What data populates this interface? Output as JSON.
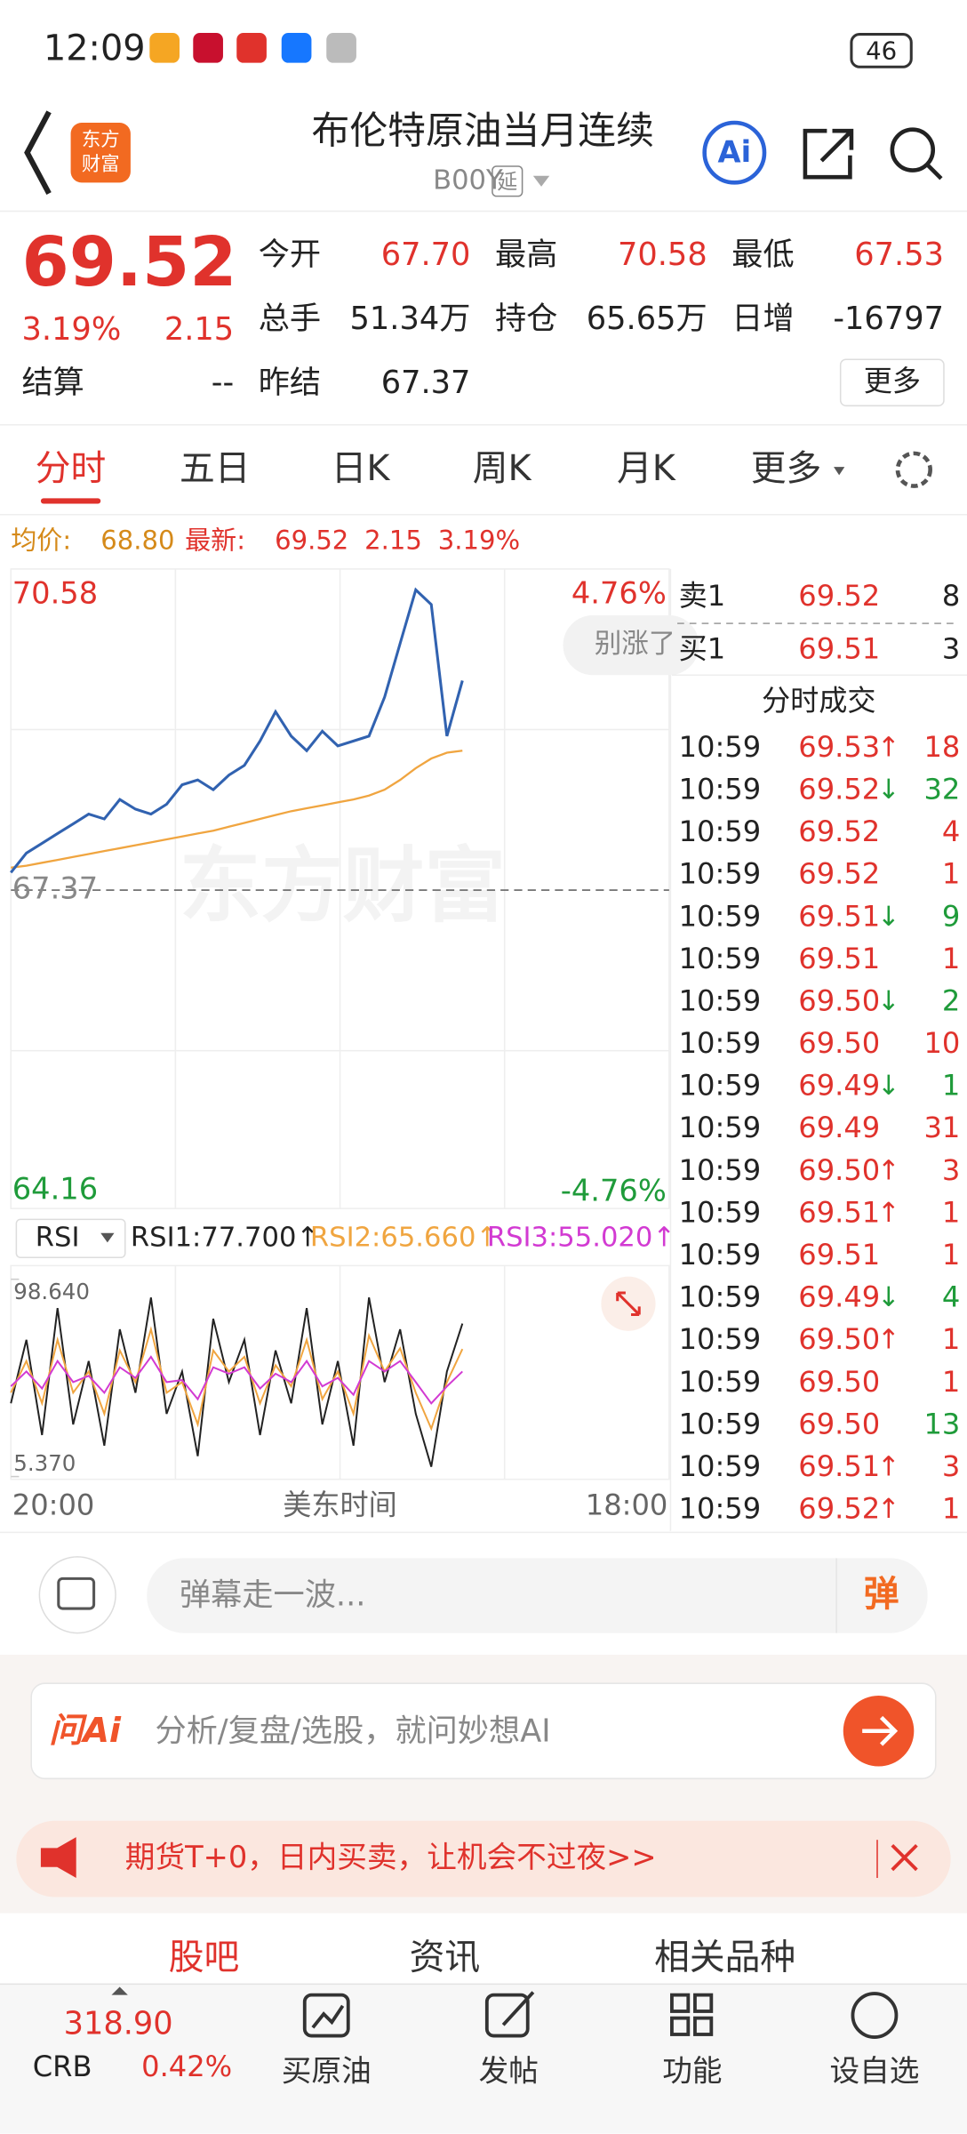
{
  "status_bar": {
    "time": "12:09",
    "battery": "46"
  },
  "header": {
    "logo": [
      "东方",
      "财富"
    ],
    "title": "布伦特原油当月连续",
    "code": "B00Y",
    "tag": "延",
    "ai": "Ai"
  },
  "quote": {
    "price": "69.52",
    "change_pct": "3.19%",
    "change": "2.15",
    "settle_label": "结算",
    "settle": "--",
    "fields": [
      {
        "label": "今开",
        "value": "67.70"
      },
      {
        "label": "最高",
        "value": "70.58"
      },
      {
        "label": "最低",
        "value": "67.53"
      },
      {
        "label": "总手",
        "value": "51.34万"
      },
      {
        "label": "持仓",
        "value": "65.65万"
      },
      {
        "label": "日增",
        "value": "-16797"
      },
      {
        "label": "昨结",
        "value": "67.37"
      }
    ],
    "more": "更多"
  },
  "tabs": {
    "items": [
      "分时",
      "五日",
      "日K",
      "周K",
      "月K",
      "更多"
    ],
    "active": 0
  },
  "summary": {
    "avg_label": "均价:",
    "avg": "68.80",
    "last_label": "最新:",
    "last": "69.52",
    "change": "2.15",
    "change_pct": "3.19%"
  },
  "chart_data": {
    "type": "line",
    "ylim": [
      64.16,
      70.58
    ],
    "yticks": [
      70.58,
      67.37,
      64.16
    ],
    "pct_ticks": [
      "4.76%",
      "-4.76%"
    ],
    "watermark": "东方财富",
    "badge": "别涨了",
    "x_labels": [
      "20:00",
      "美东时间",
      "18:00"
    ],
    "series": [
      {
        "color": "#3162b0",
        "values": [
          67.55,
          67.75,
          67.85,
          67.95,
          68.05,
          68.15,
          68.1,
          68.3,
          68.2,
          68.15,
          68.25,
          68.45,
          68.5,
          68.4,
          68.55,
          68.65,
          68.9,
          69.2,
          68.95,
          68.8,
          69.0,
          68.85,
          68.9,
          68.95,
          69.35,
          69.9,
          70.45,
          70.3,
          68.95,
          69.52
        ]
      },
      {
        "color": "#f0a540",
        "values": [
          67.6,
          67.62,
          67.65,
          67.68,
          67.71,
          67.74,
          67.77,
          67.8,
          67.83,
          67.86,
          67.89,
          67.92,
          67.95,
          67.98,
          68.02,
          68.06,
          68.1,
          68.14,
          68.18,
          68.21,
          68.24,
          68.27,
          68.3,
          68.34,
          68.4,
          68.5,
          68.62,
          68.72,
          68.78,
          68.8
        ]
      }
    ],
    "rsi": {
      "label": "RSI",
      "ylim": [
        5.37,
        98.64
      ],
      "yticks": [
        {
          "value": 98.64,
          "label": "98.640"
        },
        {
          "value": 5.37,
          "label": "5.370"
        }
      ],
      "readouts": [
        "RSI1:77.700↑",
        "RSI2:65.660↑",
        "RSI3:55.020↑"
      ],
      "series": [
        {
          "color": "#222222",
          "values": [
            40,
            70,
            25,
            85,
            30,
            60,
            20,
            75,
            45,
            90,
            35,
            55,
            15,
            80,
            50,
            70,
            25,
            65,
            40,
            85,
            30,
            60,
            20,
            90,
            50,
            75,
            35,
            10,
            55,
            77.7
          ]
        },
        {
          "color": "#f0a540",
          "values": [
            45,
            60,
            40,
            70,
            45,
            55,
            35,
            65,
            50,
            75,
            45,
            50,
            30,
            65,
            55,
            62,
            40,
            58,
            48,
            70,
            42,
            55,
            35,
            72,
            55,
            66,
            45,
            28,
            50,
            65.66
          ]
        },
        {
          "color": "#d23ad2",
          "values": [
            48,
            55,
            47,
            60,
            50,
            53,
            45,
            57,
            52,
            62,
            50,
            51,
            42,
            57,
            54,
            57,
            47,
            54,
            50,
            60,
            48,
            52,
            44,
            60,
            55,
            60,
            50,
            40,
            48,
            55.02
          ]
        }
      ]
    }
  },
  "order_book": {
    "sell": {
      "label": "卖1",
      "price": "69.52",
      "volume": "8"
    },
    "buy": {
      "label": "买1",
      "price": "69.51",
      "volume": "3"
    }
  },
  "trades": {
    "title": "分时成交",
    "rows": [
      {
        "time": "10:59",
        "price": "69.53",
        "arrow": "↑",
        "volume": "18",
        "color": "#e0322c"
      },
      {
        "time": "10:59",
        "price": "69.52",
        "arrow": "↓",
        "volume": "32",
        "color": "#1f9b3a"
      },
      {
        "time": "10:59",
        "price": "69.52",
        "volume": "4",
        "color": "#e0322c"
      },
      {
        "time": "10:59",
        "price": "69.52",
        "volume": "1",
        "color": "#e0322c"
      },
      {
        "time": "10:59",
        "price": "69.51",
        "arrow": "↓",
        "volume": "9",
        "color": "#1f9b3a"
      },
      {
        "time": "10:59",
        "price": "69.51",
        "volume": "1",
        "color": "#e0322c"
      },
      {
        "time": "10:59",
        "price": "69.50",
        "arrow": "↓",
        "volume": "2",
        "color": "#1f9b3a"
      },
      {
        "time": "10:59",
        "price": "69.50",
        "volume": "10",
        "color": "#e0322c"
      },
      {
        "time": "10:59",
        "price": "69.49",
        "arrow": "↓",
        "volume": "1",
        "color": "#1f9b3a"
      },
      {
        "time": "10:59",
        "price": "69.49",
        "volume": "31",
        "color": "#e0322c"
      },
      {
        "time": "10:59",
        "price": "69.50",
        "arrow": "↑",
        "volume": "3",
        "color": "#e0322c"
      },
      {
        "time": "10:59",
        "price": "69.51",
        "arrow": "↑",
        "volume": "1",
        "color": "#e0322c"
      },
      {
        "time": "10:59",
        "price": "69.51",
        "volume": "1",
        "color": "#e0322c"
      },
      {
        "time": "10:59",
        "price": "69.49",
        "arrow": "↓",
        "volume": "4",
        "color": "#1f9b3a"
      },
      {
        "time": "10:59",
        "price": "69.50",
        "arrow": "↑",
        "volume": "1",
        "color": "#e0322c"
      },
      {
        "time": "10:59",
        "price": "69.50",
        "volume": "1",
        "color": "#e0322c"
      },
      {
        "time": "10:59",
        "price": "69.50",
        "volume": "13",
        "color": "#1f9b3a"
      },
      {
        "time": "10:59",
        "price": "69.51",
        "arrow": "↑",
        "volume": "3",
        "color": "#e0322c"
      },
      {
        "time": "10:59",
        "price": "69.52",
        "arrow": "↑",
        "volume": "1",
        "color": "#e0322c"
      }
    ]
  },
  "danmaku": {
    "placeholder": "弹幕走一波...",
    "button": "弹"
  },
  "ai_bar": {
    "brand": "问Ai",
    "placeholder": "分析/复盘/选股，就问妙想AI"
  },
  "banner": {
    "text": "期货T+0，日内买卖，让机会不过夜>>"
  },
  "section_tabs": [
    "股吧",
    "资讯",
    "相关品种"
  ],
  "nav": {
    "index": {
      "name": "CRB",
      "value": "318.90",
      "change": "0.42%"
    },
    "items": [
      "买原油",
      "发帖",
      "功能",
      "设自选"
    ]
  }
}
